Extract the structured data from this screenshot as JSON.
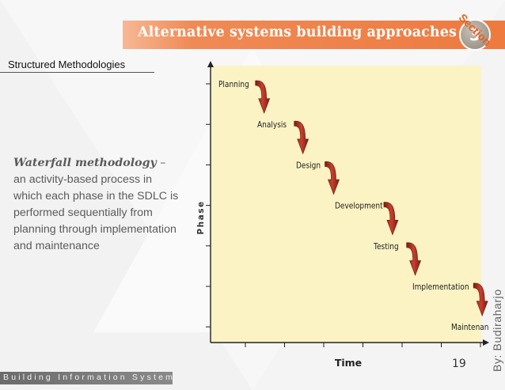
{
  "slide": {
    "title": "Alternative systems building approaches",
    "section_word": "Section",
    "section_number": "3",
    "subtitle": "Structured Methodologies",
    "body_emphasis": "Waterfall methodology",
    "body_dash": " –",
    "body_text": "an activity-based process in which each phase in the SDLC is performed sequentially from planning through implementation and maintenance",
    "footer": "Building Information Systems",
    "page_number": "19",
    "author": "By: Budiraharjo"
  },
  "colors": {
    "accent": "#ee7a3f",
    "chart_background": "#fbf3c4",
    "arrow": "#a82a1e"
  },
  "diagram": {
    "x_axis_label": "Time",
    "y_axis_label": "Phase",
    "phases": [
      "Planning",
      "Analysis",
      "Design",
      "Development",
      "Testing",
      "Implementation",
      "Maintenance"
    ]
  }
}
